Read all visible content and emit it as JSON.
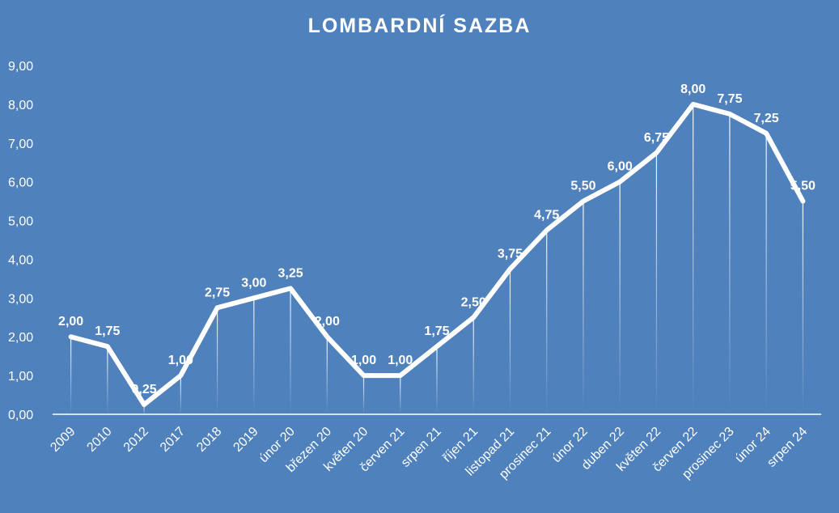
{
  "chart_data": {
    "type": "line",
    "title": "LOMBARDNÍ SAZBA",
    "xlabel": "",
    "ylabel": "",
    "categories": [
      "2009",
      "2010",
      "2012",
      "2017",
      "2018",
      "2019",
      "únor 20",
      "březen 20",
      "květen 20",
      "červen 21",
      "srpen 21",
      "říjen 21",
      "listopad 21",
      "prosinec 21",
      "únor 22",
      "duben 22",
      "květen 22",
      "červen 22",
      "prosinec 23",
      "únor 24",
      "srpen 24"
    ],
    "series": [
      {
        "values": [
          2.0,
          1.75,
          0.25,
          1.0,
          2.75,
          3.0,
          3.25,
          2.0,
          1.0,
          1.0,
          1.75,
          2.5,
          3.75,
          4.75,
          5.5,
          6.0,
          6.75,
          8.0,
          7.75,
          7.25,
          5.5
        ],
        "data_labels": [
          "2,00",
          "1,75",
          "0,25",
          "1,00",
          "2,75",
          "3,00",
          "3,25",
          "2,00",
          "1,00",
          "1,00",
          "1,75",
          "2,50",
          "3,75",
          "4,75",
          "5,50",
          "6,00",
          "6,75",
          "8,00",
          "7,75",
          "7,25",
          "5,50"
        ]
      }
    ],
    "ylim": [
      0,
      9
    ],
    "yticks": [
      0,
      1,
      2,
      3,
      4,
      5,
      6,
      7,
      8,
      9
    ],
    "ytick_labels": [
      "0,00",
      "1,00",
      "2,00",
      "3,00",
      "4,00",
      "5,00",
      "6,00",
      "7,00",
      "8,00",
      "9,00"
    ],
    "grid": false,
    "drop_lines": true,
    "legend": "none",
    "colors": {
      "background": "#4f81bd",
      "line": "#ffffff",
      "text": "#ffffff"
    }
  }
}
